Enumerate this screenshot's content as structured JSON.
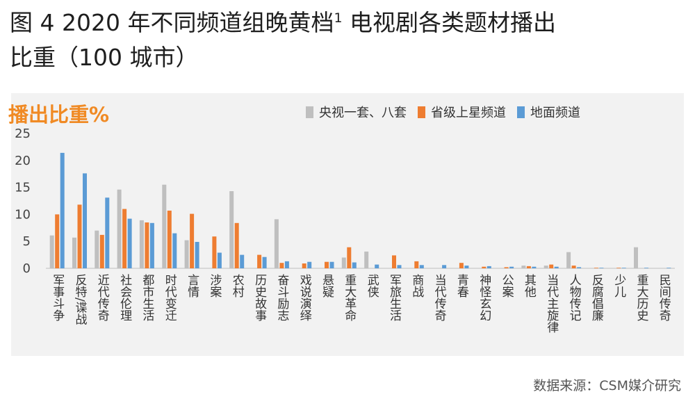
{
  "figure": {
    "title_line1": "图 4 2020 年不同频道组晚黄档",
    "title_sup": "1",
    "title_line1_end": " 电视剧各类题材播出",
    "title_line2": "比重（100 城市）"
  },
  "source": "数据来源：CSM媒介研究",
  "colors": {
    "panel_bg": "#f2f2f2",
    "cctv": "#bfbfbf",
    "provincial": "#ee7d31",
    "terrestrial": "#5b9bd5"
  },
  "chart_data": {
    "type": "bar",
    "title": "播出比重%",
    "ylim": [
      0,
      25
    ],
    "yticks": [
      0,
      5,
      10,
      15,
      20,
      25
    ],
    "grid": false,
    "legend_position": "top-right",
    "categories": [
      "军事斗争",
      "反特/谍战",
      "近代传奇",
      "社会伦理",
      "都市生活",
      "时代变迁",
      "言情",
      "涉案",
      "农村",
      "历史故事",
      "奋斗励志",
      "戏说演绎",
      "悬疑",
      "重大革命",
      "武侠",
      "军旅生活",
      "商战",
      "当代传奇",
      "青春",
      "神怪玄幻",
      "公案",
      "其他",
      "当代主旋律",
      "人物传记",
      "反腐倡廉",
      "少儿",
      "重大历史",
      "民间传奇"
    ],
    "series": [
      {
        "name": "央视一套、八套",
        "color": "#bfbfbf",
        "values": [
          6.1,
          5.7,
          7.0,
          14.6,
          8.9,
          15.5,
          5.2,
          0,
          14.3,
          0,
          9.1,
          0,
          0,
          2.0,
          3.1,
          0,
          0,
          0,
          0,
          0,
          0,
          0.5,
          0.5,
          3.0,
          0,
          0,
          3.9,
          0
        ]
      },
      {
        "name": "省级上星频道",
        "color": "#ee7d31",
        "values": [
          10.0,
          11.8,
          6.2,
          11.0,
          8.5,
          10.7,
          10.1,
          5.9,
          8.4,
          2.5,
          1.0,
          0.9,
          1.2,
          3.9,
          0,
          2.4,
          1.3,
          0,
          1.0,
          0.3,
          0.2,
          0.4,
          0.7,
          0.5,
          0.1,
          0.1,
          0,
          0
        ]
      },
      {
        "name": "地面频道",
        "color": "#5b9bd5",
        "values": [
          21.4,
          17.6,
          13.1,
          9.2,
          8.4,
          6.5,
          4.9,
          2.9,
          2.5,
          2.1,
          1.3,
          1.2,
          1.2,
          1.1,
          0.7,
          0.6,
          0.6,
          0.6,
          0.5,
          0.4,
          0.3,
          0.3,
          0.3,
          0.2,
          0.1,
          0.1,
          0.1,
          0.1
        ]
      }
    ]
  }
}
